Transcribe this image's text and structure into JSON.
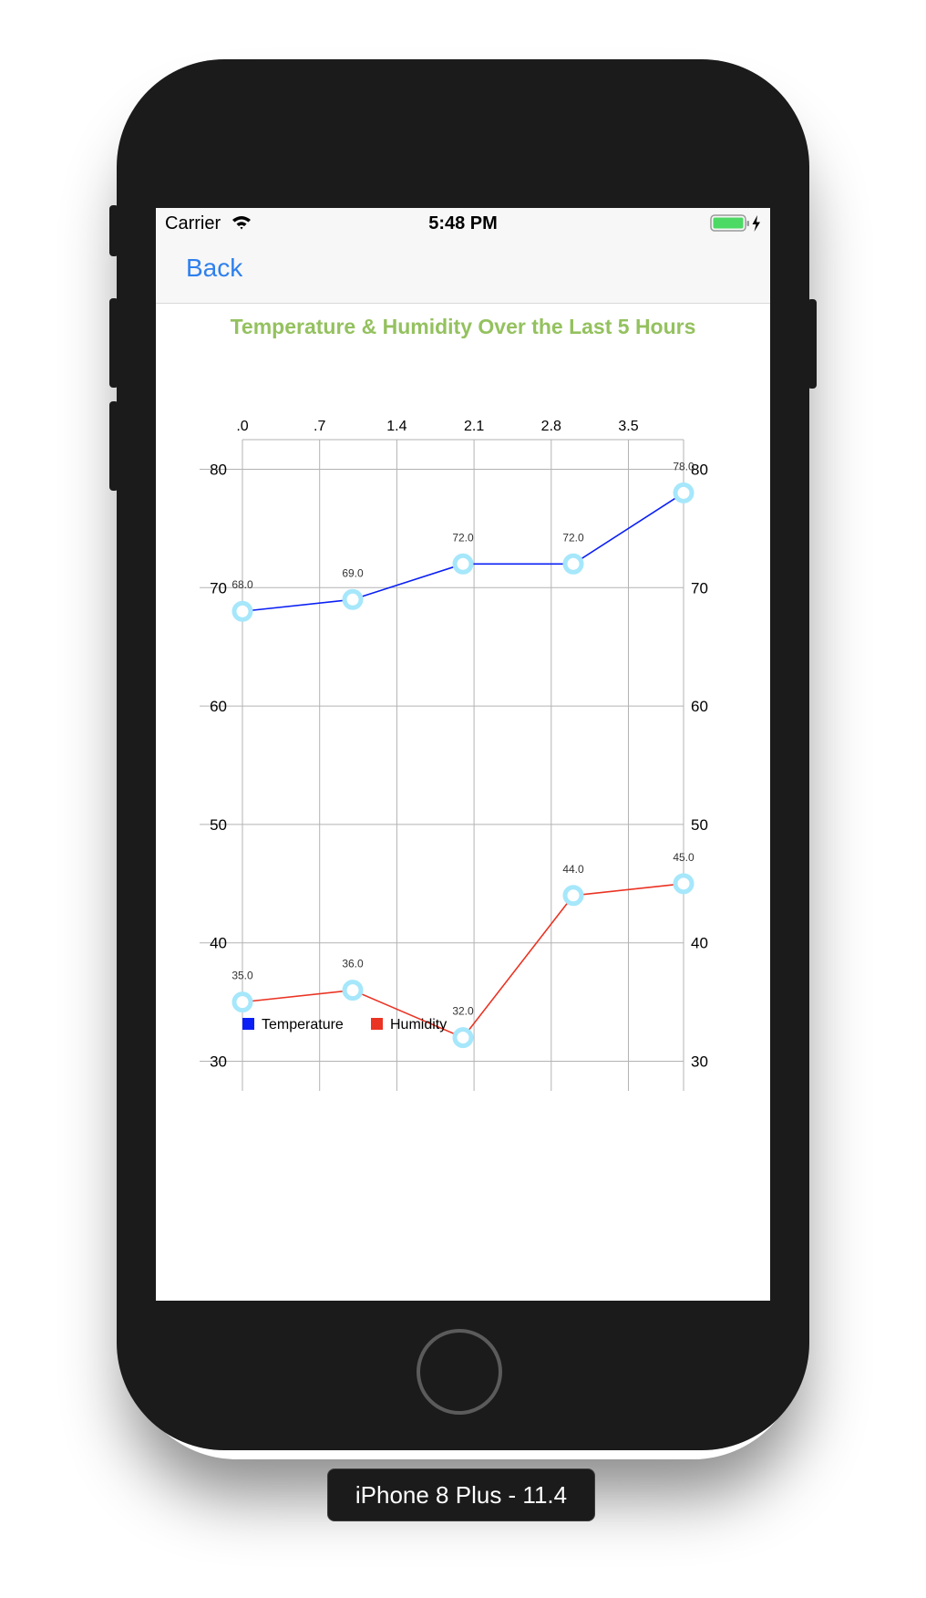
{
  "status_bar": {
    "carrier": "Carrier",
    "time": "5:48 PM"
  },
  "nav": {
    "back_label": "Back"
  },
  "device_label": "iPhone 8 Plus - 11.4",
  "colors": {
    "title": "#94c15f",
    "temperature": "#0a1ff5",
    "humidity": "#ea3323",
    "marker": "#a6e7fb",
    "back": "#2f80ed"
  },
  "chart_data": {
    "type": "line",
    "title": "Temperature & Humidity Over the Last 5 Hours",
    "top_axis_tick_labels": [
      ".0",
      ".7",
      "1.4",
      "2.1",
      "2.8",
      "3.5"
    ],
    "top_axis_tick_values": [
      0,
      0.7,
      1.4,
      2.1,
      2.8,
      3.5
    ],
    "xlim": [
      0,
      4
    ],
    "x": [
      0,
      1,
      2,
      3,
      4
    ],
    "ylim": [
      27.5,
      82.5
    ],
    "y_ticks": [
      30,
      40,
      50,
      60,
      70,
      80
    ],
    "series": [
      {
        "name": "Temperature",
        "color": "#0a1ff5",
        "values": [
          68.0,
          69.0,
          72.0,
          72.0,
          78.0
        ],
        "labels": [
          "68.0",
          "69.0",
          "72.0",
          "72.0",
          "78.0"
        ]
      },
      {
        "name": "Humidity",
        "color": "#ea3323",
        "values": [
          35.0,
          36.0,
          32.0,
          44.0,
          45.0
        ],
        "labels": [
          "35.0",
          "36.0",
          "32.0",
          "44.0",
          "45.0"
        ]
      }
    ],
    "grid": true,
    "legend": "bottom-left"
  }
}
